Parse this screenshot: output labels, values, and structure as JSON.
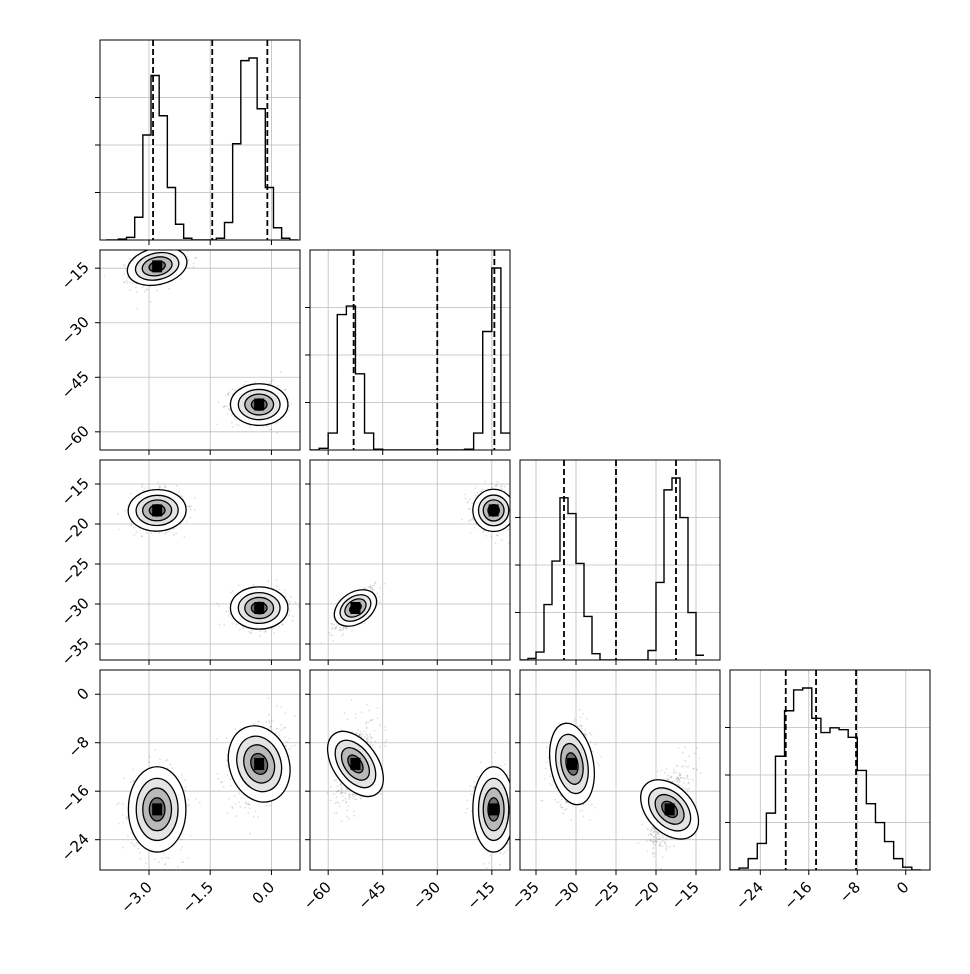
{
  "chart_data": {
    "type": "corner",
    "title": "",
    "variables": [
      {
        "range": [
          -4.2,
          0.7
        ],
        "ticks": [
          -3.0,
          -1.5,
          0.0
        ],
        "tick_labels": [
          "−3.0",
          "−1.5",
          "0.0"
        ]
      },
      {
        "range": [
          -65,
          -10
        ],
        "ticks": [
          -60,
          -45,
          -30,
          -15
        ],
        "tick_labels": [
          "−60",
          "−45",
          "−30",
          "−15"
        ]
      },
      {
        "range": [
          -37,
          -12
        ],
        "ticks": [
          -35,
          -30,
          -25,
          -20,
          -15
        ],
        "tick_labels": [
          "−35",
          "−30",
          "−25",
          "−20",
          "−15"
        ]
      },
      {
        "range": [
          -29,
          4
        ],
        "ticks": [
          -24,
          -16,
          -8,
          0
        ],
        "tick_labels": [
          "−24",
          "−16",
          "−8",
          "0"
        ]
      }
    ],
    "histograms": [
      {
        "bins": [
          -4.05,
          -3.75,
          -3.55,
          -3.35,
          -3.15,
          -2.95,
          -2.75,
          -2.55,
          -2.35,
          -2.15,
          -1.95,
          -1.75,
          -1.55,
          -1.35,
          -1.15,
          -0.95,
          -0.75,
          -0.55,
          -0.35,
          -0.15,
          0.05,
          0.25,
          0.45,
          0.65
        ],
        "counts": [
          0,
          1,
          3,
          26,
          120,
          188,
          142,
          60,
          18,
          2,
          0,
          0,
          0,
          2,
          20,
          110,
          205,
          208,
          150,
          60,
          14,
          2,
          0
        ],
        "quantiles": [
          -2.9,
          -1.45,
          -0.1
        ]
      },
      {
        "bins": [
          -65,
          -62.5,
          -60,
          -57.5,
          -55,
          -52.5,
          -50,
          -47.5,
          -45,
          -42.5,
          -40,
          -37.5,
          -35,
          -32.5,
          -30,
          -27.5,
          -25,
          -22.5,
          -20,
          -17.5,
          -15,
          -12.5,
          -10
        ],
        "counts": [
          0,
          2,
          20,
          160,
          170,
          90,
          20,
          1,
          0,
          0,
          0,
          0,
          0,
          0,
          0,
          0,
          0,
          1,
          20,
          140,
          215,
          20
        ],
        "quantiles": [
          -53.0,
          -30.0,
          -14.3
        ]
      },
      {
        "bins": [
          -37,
          -36,
          -35,
          -34,
          -33,
          -32,
          -31,
          -30,
          -29,
          -28,
          -27,
          -26,
          -25,
          -24,
          -23,
          -22,
          -21,
          -20,
          -19,
          -18,
          -17,
          -16,
          -15,
          -14
        ],
        "counts": [
          0,
          2,
          10,
          70,
          125,
          205,
          185,
          122,
          55,
          8,
          0,
          0,
          0,
          0,
          0,
          0,
          12,
          98,
          215,
          230,
          180,
          60,
          6
        ],
        "quantiles": [
          -31.5,
          -25.0,
          -17.5
        ]
      },
      {
        "bins": [
          -29,
          -27.5,
          -26,
          -24.5,
          -23,
          -21.5,
          -20,
          -18.5,
          -17,
          -15.5,
          -14,
          -12.5,
          -11,
          -9.5,
          -8,
          -6.5,
          -5,
          -3.5,
          -2,
          -0.5,
          1,
          2.5
        ],
        "counts": [
          0,
          2,
          12,
          28,
          60,
          120,
          168,
          190,
          192,
          160,
          145,
          150,
          148,
          140,
          105,
          70,
          50,
          30,
          12,
          3,
          0
        ],
        "quantiles": [
          -19.8,
          -14.8,
          -8.2
        ]
      }
    ],
    "modes": [
      [
        -2.8,
        -14.5,
        -18.3,
        -19.0
      ],
      [
        -0.3,
        -52.5,
        -30.5,
        -11.5
      ]
    ]
  }
}
